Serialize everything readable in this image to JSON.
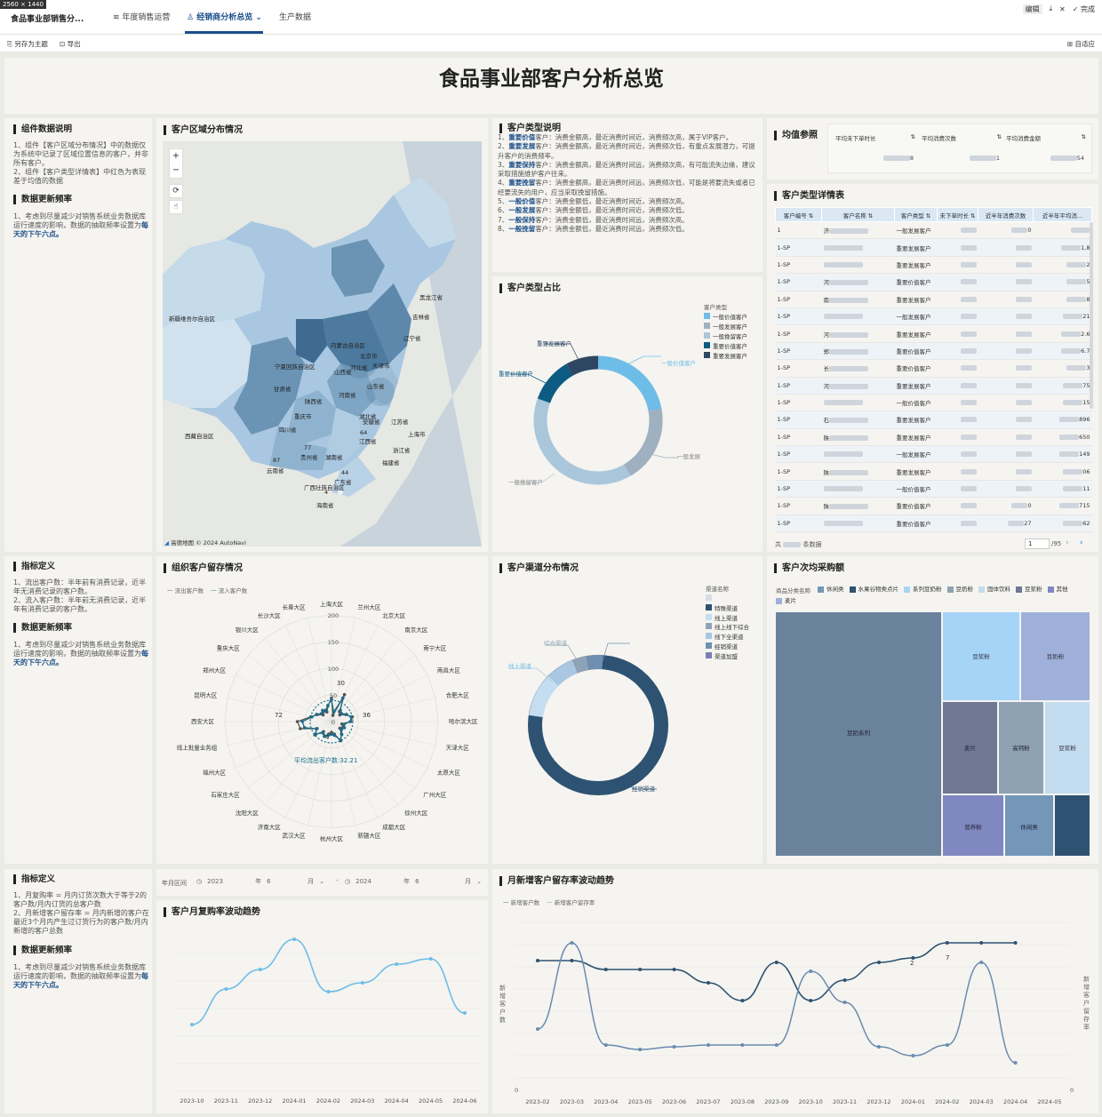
{
  "window": {
    "size_badge": "2560 × 1440"
  },
  "topbar": {
    "app_title": "食品事业部销售分...",
    "tabs": [
      {
        "label": "年度销售运营"
      },
      {
        "label": "经销商分析总览"
      },
      {
        "label": "生产数据"
      }
    ],
    "actions": {
      "edit": "编辑",
      "download": "",
      "close": "",
      "done": "完成"
    }
  },
  "toolbar": {
    "save_as_theme": "另存为主题",
    "export": "导出",
    "fit": "自适应"
  },
  "page_title": "食品事业部客户分析总览",
  "left1": {
    "title1": "组件数据说明",
    "text1": "1、组件【客户区域分布情况】中的数据仅为系统中记录了区域位置信息的客户，并非所有客户。",
    "text2": "2、组件【客户类型详情表】中红色为表现差于均值的数据",
    "title2": "数据更新频率",
    "text3a": "1、考虑到尽量减少对销售系统业务数据库运行速度的影响，数据的抽取频率设置为",
    "text3b": "每天的下午六点。"
  },
  "map": {
    "title": "客户区域分布情况",
    "provinces": [
      "黑龙江省",
      "吉林省",
      "辽宁省",
      "内蒙古自治区",
      "北京市",
      "河北省",
      "山西省",
      "天津市",
      "宁夏回族自治区",
      "陕西省",
      "山东省",
      "河南省",
      "甘肃省",
      "安徽省",
      "江苏省",
      "上海市",
      "湖北省",
      "新疆维吾尔自治区",
      "西藏自治区",
      "四川省",
      "重庆市",
      "贵州省",
      "湖南省",
      "江西省",
      "浙江省",
      "福建省",
      "云南省",
      "广西壮族自治区",
      "广东省",
      "海南省"
    ],
    "values": [
      "77",
      "64",
      "87",
      "44",
      "4"
    ],
    "attribution": "高德地图 © 2024 AutoNavi"
  },
  "type_desc": {
    "title": "客户类型说明",
    "lines": [
      {
        "n": "1、",
        "k": "重要价值",
        "t": "客户：消费金额高，最近消费时间近，消费频次高，属于VIP客户。"
      },
      {
        "n": "2、",
        "k": "重要发展",
        "t": "客户：消费金额高，最近消费时间近，消费频次低，有重点发展潜力，可提升客户的消费频率。"
      },
      {
        "n": "3、",
        "k": "重要保持",
        "t": "客户：消费金额高，最近消费时间远，消费频次高，有可能流失边缘，建议采取措施维护客户往来。"
      },
      {
        "n": "4、",
        "k": "重要挽留",
        "t": "客户：消费金额高，最近消费时间远，消费频次低，可能是将要流失或者已经要流失的用户，应当采取挽留措施。"
      },
      {
        "n": "5、",
        "k": "一般价值",
        "t": "客户：消费金额低，最近消费时间近，消费频次高。"
      },
      {
        "n": "6、",
        "k": "一般发展",
        "t": "客户：消费金额低，最近消费时间近，消费频次低。"
      },
      {
        "n": "7、",
        "k": "一般保持",
        "t": "客户：消费金额低，最近消费时间远，消费频次高。"
      },
      {
        "n": "8、",
        "k": "一般挽留",
        "t": "客户：消费金额低，最近消费时间远，消费频次低。"
      }
    ]
  },
  "avg_ref": {
    "title": "均值参照",
    "cols": [
      "平均未下单时长",
      "平均消费次数",
      "平均消费金额"
    ],
    "vals": [
      "8",
      "1",
      "54"
    ]
  },
  "detail_table": {
    "title": "客户类型详情表",
    "headers": [
      "客户编号",
      "客户名称",
      "客户类型",
      "未下单时长",
      "近半年消费次数",
      "近半年平均消..."
    ],
    "rows": [
      [
        "1",
        "济",
        "一般发展客户",
        "",
        "0",
        ""
      ],
      [
        "1-SP",
        "",
        "重要发展客户",
        "",
        "",
        "1,8"
      ],
      [
        "1-SP",
        "",
        "重要发展客户",
        "",
        "",
        "2"
      ],
      [
        "1-SP",
        "河",
        "重要价值客户",
        "",
        "",
        "5"
      ],
      [
        "1-SP",
        "南",
        "重要发展客户",
        "",
        "",
        "8"
      ],
      [
        "1-SP",
        "",
        "一般发展客户",
        "",
        "",
        "21"
      ],
      [
        "1-SP",
        "河",
        "重要发展客户",
        "",
        "",
        "2.6"
      ],
      [
        "1-SP",
        "郑",
        "重要价值客户",
        "",
        "",
        "6.7"
      ],
      [
        "1-SP",
        "长",
        "重要价值客户",
        "",
        "",
        "3"
      ],
      [
        "1-SP",
        "河",
        "重要发展客户",
        "",
        "",
        "75"
      ],
      [
        "1-SP",
        "",
        "一般价值客户",
        "",
        "",
        "15"
      ],
      [
        "1-SP",
        "石",
        "重要发展客户",
        "",
        "",
        "896"
      ],
      [
        "1-SP",
        "陕",
        "重要发展客户",
        "",
        "",
        "650"
      ],
      [
        "1-SP",
        "",
        "一般发展客户",
        "",
        "",
        "149"
      ],
      [
        "1-SP",
        "陕",
        "重要发展客户",
        "",
        "",
        "06"
      ],
      [
        "1-SP",
        "",
        "一般价值客户",
        "",
        "",
        "11"
      ],
      [
        "1-SP",
        "陕",
        "重要价值客户",
        "",
        "0",
        "715"
      ],
      [
        "1-SP",
        "",
        "重要价值客户",
        "",
        "27",
        "62"
      ]
    ],
    "footer_total": "共",
    "footer_unit": "条数据",
    "page": "1",
    "pages": "/95"
  },
  "left2": {
    "title1": "指标定义",
    "text1": "1、流出客户数：半年前有消费记录，近半年无消费记录的客户数。",
    "text2": "2、流入客户数：半年前无消费记录，近半年有消费记录的客户数。",
    "title2": "数据更新频率",
    "text3a": "1、考虑到尽量减少对销售系统业务数据库运行速度的影响，数据的抽取频率设置为",
    "text3b": "每天的下午六点。"
  },
  "radar": {
    "title": "组织客户留存情况",
    "legend": [
      "流出客户数",
      "流入客户数"
    ],
    "axes": [
      "上海大区",
      "兰州大区",
      "北京大区",
      "南京大区",
      "南宁大区",
      "南昌大区",
      "合肥大区",
      "哈尔滨大区",
      "天津大区",
      "太原大区",
      "广州大区",
      "徐州大区",
      "成都大区",
      "新疆大区",
      "杭州大区",
      "武汉大区",
      "济南大区",
      "沈阳大区",
      "石家庄大区",
      "福州大区",
      "线上批量业务组",
      "西安大区",
      "昆明大区",
      "郑州大区",
      "重庆大区",
      "银川大区",
      "长沙大区",
      "长春大区"
    ],
    "rings": [
      "200",
      "150",
      "100",
      "50",
      "0"
    ],
    "labels": [
      "30",
      "72",
      "36",
      "4"
    ],
    "avg_label": "平均流出客户数:32.21"
  },
  "type_share": {
    "title": "客户类型占比",
    "legend_title": "客户类型",
    "legend": [
      "一般价值客户",
      "一般发展客户",
      "一般挽留客户",
      "重要价值客户",
      "重要发展客户"
    ],
    "labels": [
      "重要价值客户",
      "一般价值客户",
      "一般发展",
      "一般挽留客户",
      "重要发展客户"
    ]
  },
  "channel": {
    "title": "客户渠道分布情况",
    "legend_title": "渠道名称",
    "legend": [
      "",
      "特殊渠道",
      "线上渠道",
      "线上线下综合",
      "线下全渠道",
      "经销渠道",
      "渠道加盟"
    ],
    "labels": [
      "线上渠道",
      "综合渠道",
      "经销渠道"
    ]
  },
  "treemap": {
    "title": "客户次均采购额",
    "legend_title": "商品分类名称",
    "legend": [
      "休闲类",
      "水果谷物类点片",
      "系列豆奶粉",
      "豆奶粉",
      "固体饮料",
      "豆浆粉",
      "其他",
      "麦片"
    ],
    "cells": [
      "豆奶系列",
      "豆浆粉",
      "豆奶粉",
      "麦片",
      "高钙粉",
      "豆浆粉",
      "营养粉",
      "休闲类"
    ]
  },
  "left3": {
    "title1": "指标定义",
    "text1": "1、月复购率 = 月内订货次数大于等于2的客户数/月内订货的总客户数",
    "text2": "2、月新增客户留存率 = 月内新增的客户在最近3个月内产生过订货行为的客户数/月内新增的客户总数",
    "title2": "数据更新频率",
    "text3a": "1、考虑到尽量减少对销售系统业务数据库运行速度的影响，数据的抽取频率设置为",
    "text3b": "每天的下午六点。"
  },
  "date_filter": {
    "label": "年月区间",
    "from_year": "2023",
    "from_unit_y": "年",
    "from_month": "6",
    "from_unit_m": "月",
    "sep": "-",
    "to_year": "2024",
    "to_unit_y": "年",
    "to_month": "6",
    "to_unit_m": "月"
  },
  "repurchase": {
    "title": "客户月复购率波动趋势",
    "x": [
      "2023-10",
      "2023-11",
      "2023-12",
      "2024-01",
      "2024-02",
      "2024-03",
      "2024-04",
      "2024-05",
      "2024-06"
    ]
  },
  "retention": {
    "title": "月新增客户留存率波动趋势",
    "legend": [
      "新增客户数",
      "新增客户留存率"
    ],
    "x": [
      "2023-02",
      "2023-03",
      "2023-04",
      "2023-05",
      "2023-06",
      "2023-07",
      "2023-08",
      "2023-09",
      "2023-10",
      "2023-11",
      "2023-12",
      "2024-01",
      "2024-02",
      "2024-03",
      "2024-04",
      "2024-05"
    ],
    "ylabel_left": "新增客户数",
    "ylabel_right": "新增客户留存率",
    "y0": "0",
    "point_labels": [
      "2",
      "7"
    ]
  },
  "colors": {
    "dark": "#2e5272",
    "mid": "#5b8aad",
    "light": "#a9c7e0",
    "sky": "#6ebde8",
    "grey": "#9fb0c0"
  }
}
